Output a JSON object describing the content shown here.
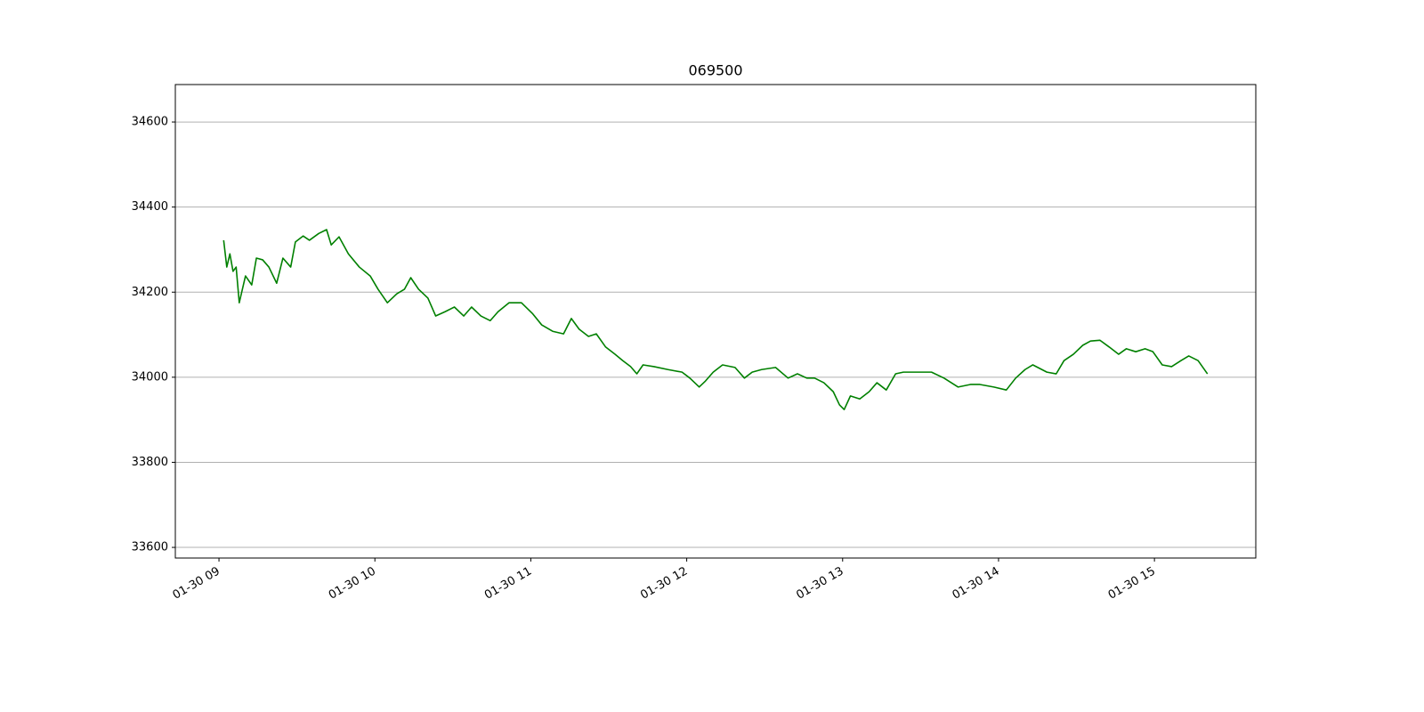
{
  "chart_data": {
    "type": "line",
    "title": "069500",
    "x": [
      9.03,
      9.05,
      9.07,
      9.09,
      9.11,
      9.13,
      9.17,
      9.21,
      9.24,
      9.28,
      9.32,
      9.37,
      9.41,
      9.46,
      9.49,
      9.54,
      9.58,
      9.64,
      9.69,
      9.72,
      9.77,
      9.83,
      9.9,
      9.97,
      10.02,
      10.08,
      10.14,
      10.19,
      10.23,
      10.28,
      10.34,
      10.39,
      10.45,
      10.51,
      10.57,
      10.62,
      10.68,
      10.74,
      10.79,
      10.86,
      10.94,
      11.01,
      11.07,
      11.14,
      11.21,
      11.26,
      11.31,
      11.37,
      11.42,
      11.48,
      11.54,
      11.59,
      11.64,
      11.68,
      11.72,
      11.79,
      11.88,
      11.97,
      12.02,
      12.08,
      12.12,
      12.17,
      12.23,
      12.31,
      12.37,
      12.42,
      12.48,
      12.57,
      12.65,
      12.71,
      12.77,
      12.82,
      12.88,
      12.94,
      12.98,
      13.01,
      13.05,
      13.11,
      13.17,
      13.22,
      13.28,
      13.34,
      13.39,
      13.48,
      13.57,
      13.65,
      13.74,
      13.82,
      13.88,
      13.97,
      14.05,
      14.11,
      14.17,
      14.22,
      14.31,
      14.37,
      14.42,
      14.48,
      14.54,
      14.59,
      14.65,
      14.71,
      14.77,
      14.82,
      14.88,
      14.94,
      14.99,
      15.05,
      15.11,
      15.17,
      15.22,
      15.28,
      15.34
    ],
    "series": [
      {
        "color": "#008000",
        "values": [
          34322,
          34259,
          34290,
          34249,
          34259,
          34175,
          34238,
          34217,
          34280,
          34276,
          34259,
          34221,
          34280,
          34259,
          34318,
          34332,
          34322,
          34338,
          34347,
          34311,
          34330,
          34290,
          34259,
          34238,
          34207,
          34175,
          34196,
          34207,
          34234,
          34207,
          34186,
          34144,
          34154,
          34165,
          34144,
          34165,
          34144,
          34133,
          34154,
          34175,
          34175,
          34150,
          34123,
          34108,
          34102,
          34138,
          34113,
          34096,
          34102,
          34071,
          34054,
          34039,
          34025,
          34008,
          34029,
          34025,
          34018,
          34012,
          33998,
          33977,
          33991,
          34012,
          34029,
          34023,
          33998,
          34012,
          34018,
          34023,
          33998,
          34008,
          33998,
          33998,
          33987,
          33966,
          33935,
          33924,
          33956,
          33949,
          33966,
          33987,
          33970,
          34008,
          34012,
          34012,
          34012,
          33998,
          33977,
          33983,
          33983,
          33977,
          33970,
          33998,
          34018,
          34029,
          34012,
          34008,
          34039,
          34054,
          34075,
          34085,
          34087,
          34071,
          34054,
          34067,
          34060,
          34067,
          34060,
          34029,
          34025,
          34039,
          34050,
          34039,
          34008
        ]
      }
    ],
    "xlim": [
      8.72,
      15.65
    ],
    "xticks": [
      {
        "value": 9,
        "label": "01-30 09"
      },
      {
        "value": 10,
        "label": "01-30 10"
      },
      {
        "value": 11,
        "label": "01-30 11"
      },
      {
        "value": 12,
        "label": "01-30 12"
      },
      {
        "value": 13,
        "label": "01-30 13"
      },
      {
        "value": 14,
        "label": "01-30 14"
      },
      {
        "value": 15,
        "label": "01-30 15"
      }
    ],
    "ylim": [
      33575,
      34688
    ],
    "yticks": [
      33600,
      33800,
      34000,
      34200,
      34400,
      34600
    ],
    "grid": "y"
  }
}
